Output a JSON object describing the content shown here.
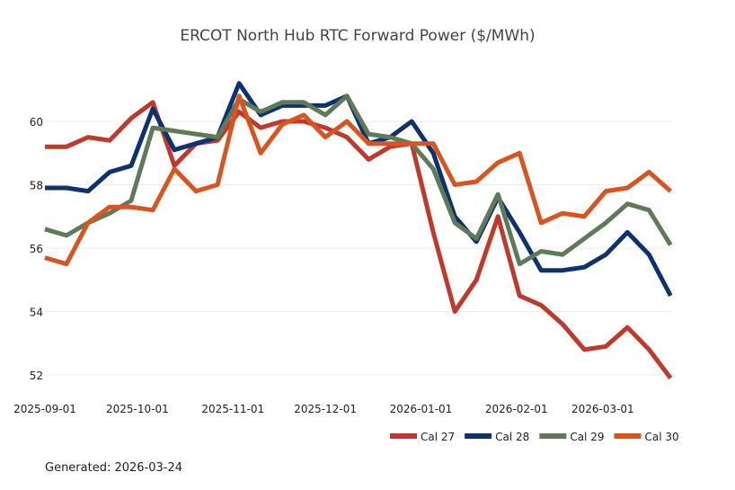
{
  "chart_data": {
    "type": "line",
    "title": "ERCOT North Hub RTC Forward Power ($/MWh)",
    "xlabel": "",
    "ylabel": "",
    "ylim": [
      51.5,
      61.8
    ],
    "grid": true,
    "legend_placement": "bottom-right",
    "x_start": "2025-09-01",
    "x_end": "2026-03-23",
    "x_ticks": [
      "2025-09-01",
      "2025-10-01",
      "2025-11-01",
      "2025-12-01",
      "2026-01-01",
      "2026-02-01",
      "2026-03-01"
    ],
    "y_ticks": [
      52,
      54,
      56,
      58,
      60
    ],
    "x": [
      "2025-09-01",
      "2025-09-08",
      "2025-09-15",
      "2025-09-22",
      "2025-09-29",
      "2025-10-06",
      "2025-10-13",
      "2025-10-20",
      "2025-10-27",
      "2025-11-03",
      "2025-11-10",
      "2025-11-17",
      "2025-11-24",
      "2025-12-01",
      "2025-12-08",
      "2025-12-15",
      "2025-12-22",
      "2025-12-29",
      "2026-01-05",
      "2026-01-12",
      "2026-01-19",
      "2026-01-26",
      "2026-02-02",
      "2026-02-09",
      "2026-02-16",
      "2026-02-23",
      "2026-03-02",
      "2026-03-09",
      "2026-03-16",
      "2026-03-23"
    ],
    "series": [
      {
        "name": "Cal 27",
        "color": "#c0392b",
        "values": [
          59.2,
          59.2,
          59.5,
          59.4,
          60.1,
          60.6,
          58.6,
          59.3,
          59.4,
          60.3,
          59.8,
          60.0,
          60.0,
          59.8,
          59.5,
          58.8,
          59.2,
          59.3,
          56.5,
          54.0,
          55.0,
          57.0,
          54.5,
          54.2,
          53.6,
          52.8,
          52.9,
          53.5,
          52.8,
          51.9
        ]
      },
      {
        "name": "Cal 28",
        "color": "#0d3270",
        "values": [
          57.9,
          57.9,
          57.8,
          58.4,
          58.6,
          60.4,
          59.1,
          59.3,
          59.5,
          61.2,
          60.2,
          60.5,
          60.5,
          60.5,
          60.8,
          59.3,
          59.5,
          60.0,
          59.0,
          57.0,
          56.2,
          57.6,
          56.5,
          55.3,
          55.3,
          55.4,
          55.8,
          56.5,
          55.8,
          54.5
        ]
      },
      {
        "name": "Cal 29",
        "color": "#5e7a58",
        "values": [
          56.6,
          56.4,
          56.8,
          57.1,
          57.5,
          59.8,
          59.7,
          59.6,
          59.5,
          60.7,
          60.3,
          60.6,
          60.6,
          60.2,
          60.8,
          59.6,
          59.5,
          59.3,
          58.5,
          56.8,
          56.3,
          57.7,
          55.5,
          55.9,
          55.8,
          56.3,
          56.8,
          57.4,
          57.2,
          56.1
        ]
      },
      {
        "name": "Cal 30",
        "color": "#d9541e",
        "values": [
          55.7,
          55.5,
          56.8,
          57.3,
          57.3,
          57.2,
          58.5,
          57.8,
          58.0,
          60.8,
          59.0,
          59.9,
          60.2,
          59.5,
          60.0,
          59.3,
          59.3,
          59.3,
          59.3,
          58.0,
          58.1,
          58.7,
          59.0,
          56.8,
          57.1,
          57.0,
          57.8,
          57.9,
          58.4,
          57.8
        ]
      }
    ]
  },
  "footer": {
    "generated": "Generated: 2026-03-24"
  }
}
